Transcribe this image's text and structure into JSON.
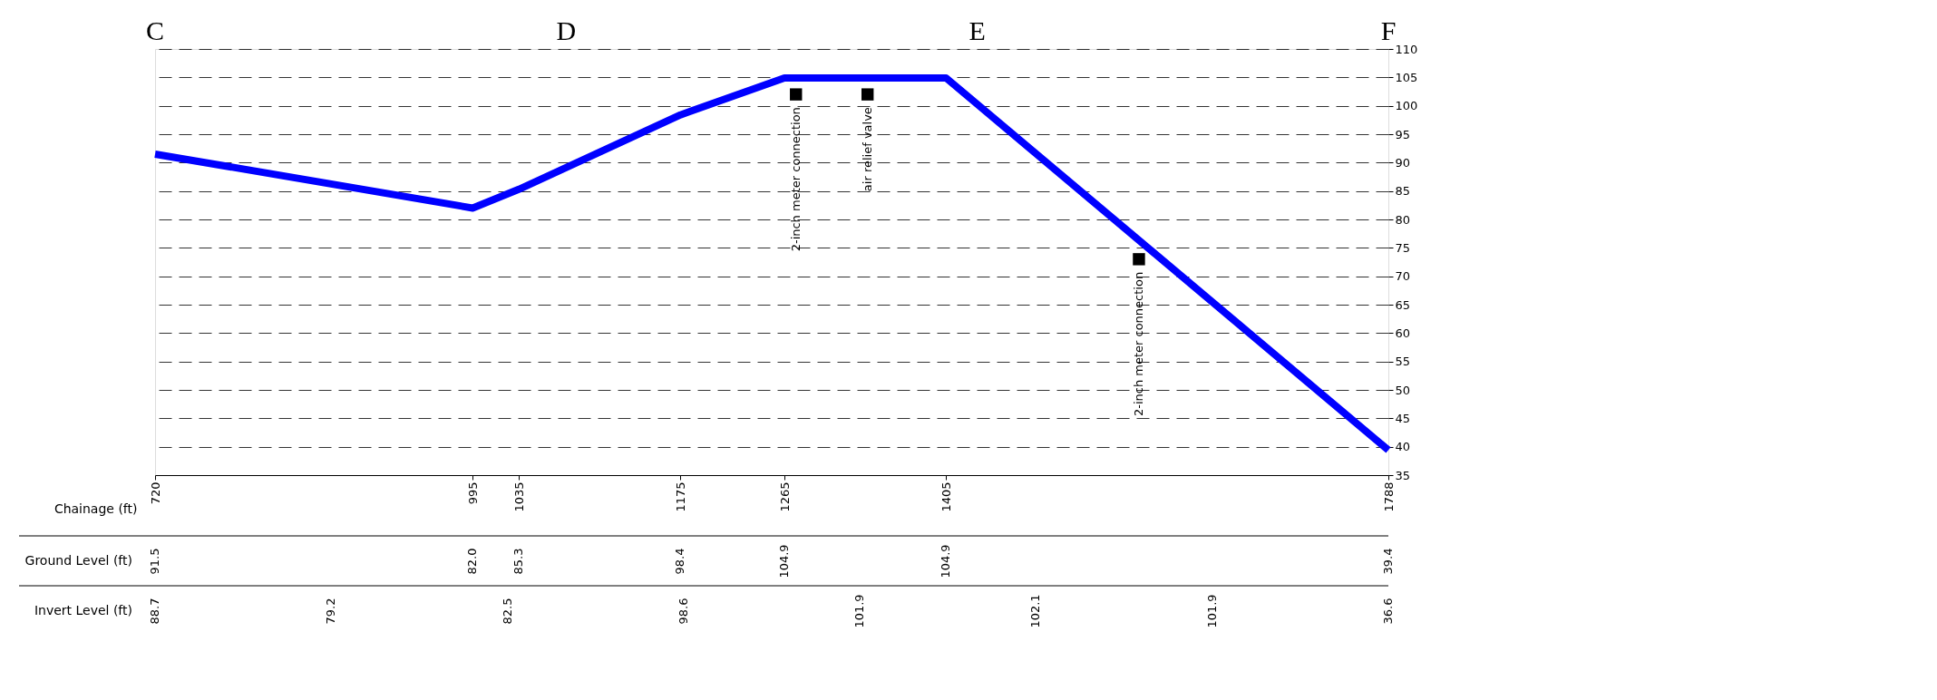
{
  "chart_data": {
    "type": "line",
    "xlabel": "Chainage (ft)",
    "x": [
      720,
      995,
      1035,
      1175,
      1265,
      1405,
      1788
    ],
    "series": [
      {
        "color": "#0000ff",
        "values": [
          91.5,
          82.0,
          85.3,
          98.4,
          104.9,
          104.9,
          39.4
        ]
      }
    ],
    "xlim": [
      720,
      1788
    ],
    "xticks": [
      720,
      995,
      1035,
      1175,
      1265,
      1405,
      1788
    ],
    "ylim": [
      35,
      110
    ],
    "yticks": [
      35,
      40,
      45,
      50,
      55,
      60,
      65,
      70,
      75,
      80,
      85,
      90,
      95,
      100,
      105,
      110
    ],
    "grid": "y",
    "line_style": "solid",
    "marker": "none",
    "annotations": [
      "C",
      "D",
      "E",
      "F",
      "Ground Level (ft)",
      "91.5",
      "82.0",
      "85.3",
      "98.4",
      "104.9",
      "104.9",
      "39.4",
      "Invert Level (ft)",
      "88.7",
      "79.2",
      "82.5",
      "98.6",
      "101.9",
      "102.1",
      "101.9",
      "36.6",
      {
        "text": "2-inch meter connection",
        "x": 1275,
        "y": 102
      },
      {
        "text": "air relief valve",
        "x": 1337,
        "y": 102
      },
      {
        "text": "2-inch meter connection",
        "x": 1572,
        "y": 73
      }
    ]
  }
}
